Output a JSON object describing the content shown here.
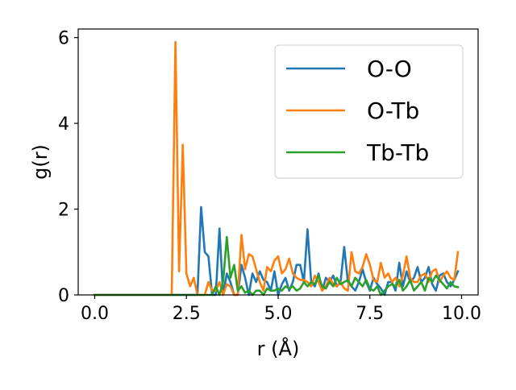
{
  "chart_data": {
    "type": "line",
    "title": "",
    "xlabel": "r (Å)",
    "ylabel": "g(r)",
    "xlim": [
      -0.45,
      10.45
    ],
    "ylim": [
      0,
      6.2
    ],
    "xticks": [
      0.0,
      2.5,
      5.0,
      7.5,
      10.0
    ],
    "xtick_labels": [
      "0.0",
      "2.5",
      "5.0",
      "7.5",
      "10.0"
    ],
    "yticks": [
      0,
      2,
      4,
      6
    ],
    "ytick_labels": [
      "0",
      "2",
      "4",
      "6"
    ],
    "grid": false,
    "legend_position": "top-right",
    "series": [
      {
        "name": "O-O",
        "color": "#1f77b4",
        "x": [
          0.0,
          2.7,
          2.8,
          2.9,
          3.0,
          3.1,
          3.2,
          3.3,
          3.4,
          3.5,
          3.6,
          3.7,
          3.8,
          3.9,
          4.0,
          4.1,
          4.2,
          4.3,
          4.4,
          4.5,
          4.6,
          4.7,
          4.8,
          4.9,
          5.0,
          5.1,
          5.2,
          5.3,
          5.4,
          5.5,
          5.6,
          5.7,
          5.8,
          5.9,
          6.0,
          6.1,
          6.2,
          6.3,
          6.4,
          6.5,
          6.6,
          6.7,
          6.8,
          6.9,
          7.0,
          7.1,
          7.2,
          7.3,
          7.4,
          7.5,
          7.6,
          7.7,
          7.8,
          7.9,
          8.0,
          8.1,
          8.2,
          8.3,
          8.4,
          8.5,
          8.6,
          8.7,
          8.8,
          8.9,
          9.0,
          9.1,
          9.2,
          9.3,
          9.4,
          9.5,
          9.6,
          9.7,
          9.8,
          9.9
        ],
        "y": [
          0.0,
          0.0,
          0.0,
          2.05,
          1.0,
          0.9,
          0.0,
          0.0,
          1.55,
          0.0,
          0.5,
          0.3,
          0.0,
          0.0,
          0.7,
          0.4,
          0.0,
          0.5,
          0.3,
          0.55,
          0.35,
          0.3,
          0.1,
          0.55,
          0.0,
          0.25,
          0.4,
          0.1,
          0.3,
          0.7,
          0.7,
          0.3,
          1.53,
          0.3,
          0.2,
          0.5,
          0.1,
          0.4,
          0.3,
          0.45,
          0.2,
          0.3,
          1.12,
          0.3,
          0.2,
          0.1,
          0.3,
          0.6,
          0.3,
          0.1,
          0.4,
          0.25,
          0.15,
          0.0,
          0.3,
          0.3,
          0.1,
          0.75,
          0.2,
          0.55,
          0.3,
          0.4,
          0.65,
          0.3,
          0.4,
          0.65,
          0.25,
          0.1,
          0.45,
          0.5,
          0.3,
          0.2,
          0.35,
          0.55
        ]
      },
      {
        "name": "O-Tb",
        "color": "#ff7f0e",
        "x": [
          0.0,
          2.1,
          2.2,
          2.3,
          2.4,
          2.5,
          2.6,
          2.7,
          2.8,
          2.9,
          3.0,
          3.1,
          3.2,
          3.3,
          3.4,
          3.5,
          3.6,
          3.7,
          3.8,
          3.9,
          4.0,
          4.1,
          4.2,
          4.3,
          4.4,
          4.5,
          4.6,
          4.7,
          4.8,
          4.9,
          5.0,
          5.1,
          5.2,
          5.3,
          5.4,
          5.5,
          5.6,
          5.7,
          5.8,
          5.9,
          6.0,
          6.1,
          6.2,
          6.3,
          6.4,
          6.5,
          6.6,
          6.7,
          6.8,
          6.9,
          7.0,
          7.1,
          7.2,
          7.3,
          7.4,
          7.5,
          7.6,
          7.7,
          7.8,
          7.9,
          8.0,
          8.1,
          8.2,
          8.3,
          8.4,
          8.5,
          8.6,
          8.7,
          8.8,
          8.9,
          9.0,
          9.1,
          9.2,
          9.3,
          9.4,
          9.5,
          9.6,
          9.7,
          9.8,
          9.9
        ],
        "y": [
          0.0,
          0.0,
          5.9,
          0.55,
          3.5,
          0.5,
          0.2,
          0.4,
          0.0,
          0.0,
          0.0,
          0.3,
          0.1,
          0.1,
          0.3,
          0.0,
          0.25,
          0.2,
          0.0,
          0.0,
          1.4,
          0.6,
          0.95,
          0.9,
          0.6,
          0.3,
          0.1,
          0.65,
          0.55,
          0.8,
          0.9,
          0.5,
          0.6,
          0.85,
          0.5,
          0.4,
          0.35,
          0.35,
          0.3,
          0.2,
          0.45,
          0.3,
          0.1,
          0.2,
          0.4,
          0.25,
          0.2,
          0.3,
          0.15,
          0.1,
          1.0,
          0.55,
          0.5,
          0.65,
          0.95,
          0.7,
          0.35,
          0.3,
          0.75,
          0.4,
          0.5,
          0.3,
          0.4,
          0.2,
          0.45,
          0.9,
          0.4,
          0.3,
          0.3,
          0.45,
          0.5,
          0.3,
          0.55,
          0.6,
          0.3,
          0.45,
          0.55,
          0.4,
          0.35,
          1.0
        ]
      },
      {
        "name": "Tb-Tb",
        "color": "#2ca02c",
        "x": [
          0.0,
          3.0,
          3.1,
          3.2,
          3.3,
          3.4,
          3.5,
          3.6,
          3.7,
          3.8,
          3.9,
          4.0,
          4.1,
          4.2,
          4.3,
          4.4,
          4.5,
          4.6,
          4.7,
          4.8,
          4.9,
          5.0,
          5.1,
          5.2,
          5.3,
          5.4,
          5.5,
          5.6,
          5.7,
          5.8,
          5.9,
          6.0,
          6.1,
          6.2,
          6.3,
          6.4,
          6.5,
          6.6,
          6.7,
          6.8,
          6.9,
          7.0,
          7.1,
          7.2,
          7.3,
          7.4,
          7.5,
          7.6,
          7.7,
          7.8,
          7.9,
          8.0,
          8.1,
          8.2,
          8.3,
          8.4,
          8.5,
          8.6,
          8.7,
          8.8,
          8.9,
          9.0,
          9.1,
          9.2,
          9.3,
          9.4,
          9.5,
          9.6,
          9.7,
          9.8,
          9.9
        ],
        "y": [
          0.0,
          0.0,
          0.0,
          0.0,
          0.2,
          0.0,
          0.3,
          1.35,
          0.4,
          0.7,
          0.1,
          0.2,
          0.05,
          0.1,
          0.0,
          0.1,
          0.1,
          0.0,
          0.15,
          0.1,
          0.1,
          0.15,
          0.1,
          0.2,
          0.15,
          0.2,
          0.1,
          0.15,
          0.3,
          0.2,
          0.3,
          0.25,
          0.45,
          0.2,
          0.15,
          0.3,
          0.2,
          0.4,
          0.25,
          0.3,
          0.35,
          0.2,
          0.4,
          0.3,
          0.2,
          0.35,
          0.15,
          0.1,
          0.2,
          0.0,
          0.1,
          0.2,
          0.25,
          0.2,
          0.35,
          0.1,
          0.2,
          0.35,
          0.1,
          0.2,
          0.3,
          0.1,
          0.4,
          0.3,
          0.45,
          0.35,
          0.25,
          0.15,
          0.3,
          0.2,
          0.18
        ]
      }
    ]
  }
}
